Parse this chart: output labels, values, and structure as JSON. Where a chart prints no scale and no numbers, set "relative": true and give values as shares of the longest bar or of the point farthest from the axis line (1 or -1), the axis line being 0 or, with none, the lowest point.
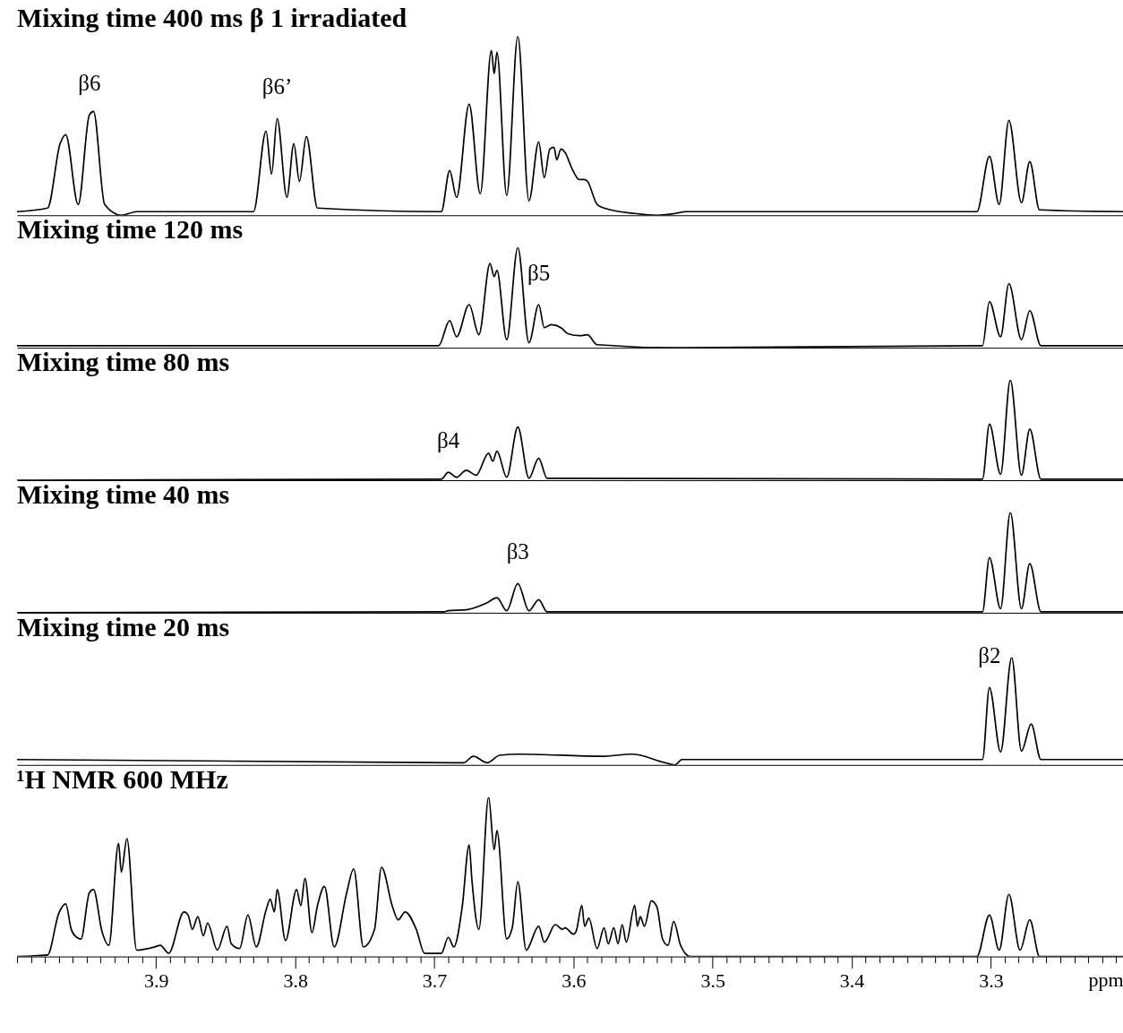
{
  "chart_data": [
    {
      "type": "line",
      "title": "Mixing time 400 ms β 1 irradiated",
      "relative": true,
      "xlim": [
        4.0,
        3.205
      ],
      "tick_labels": false,
      "series": [
        {
          "color": "#000000",
          "x": [
            4.0,
            3.978,
            3.969,
            3.965,
            3.956,
            3.948,
            3.945,
            3.937,
            3.925,
            3.914,
            3.83,
            3.821,
            3.817,
            3.813,
            3.806,
            3.801,
            3.797,
            3.792,
            3.784,
            3.695,
            3.689,
            3.684,
            3.675,
            3.667,
            3.659,
            3.657,
            3.655,
            3.648,
            3.64,
            3.632,
            3.625,
            3.621,
            3.617,
            3.614,
            3.612,
            3.609,
            3.606,
            3.601,
            3.596,
            3.592,
            3.59,
            3.583,
            3.578,
            3.556,
            3.54,
            3.527,
            3.519,
            3.31,
            3.301,
            3.294,
            3.287,
            3.278,
            3.272,
            3.265,
            3.205
          ],
          "values": [
            0.02,
            0.04,
            0.4,
            0.45,
            0.06,
            0.56,
            0.58,
            0.06,
            0,
            0.02,
            0.02,
            0.47,
            0.23,
            0.54,
            0.1,
            0.4,
            0.19,
            0.44,
            0.04,
            0.02,
            0.25,
            0.1,
            0.62,
            0.12,
            0.92,
            0.79,
            0.91,
            0.11,
            1.0,
            0.08,
            0.41,
            0.21,
            0.37,
            0.38,
            0.31,
            0.37,
            0.35,
            0.26,
            0.2,
            0.2,
            0.19,
            0.06,
            0.04,
            0.01,
            0,
            0.01,
            0.02,
            0.02,
            0.33,
            0.06,
            0.53,
            0.07,
            0.3,
            0.03,
            0.02
          ]
        }
      ],
      "annotations": [
        {
          "text": "β6",
          "x": 3.948,
          "y": 0.56
        },
        {
          "text": "β6’",
          "x": 3.813,
          "y": 0.54
        }
      ]
    },
    {
      "type": "line",
      "title": "Mixing time 120 ms",
      "relative": true,
      "xlim": [
        4.0,
        3.205
      ],
      "tick_labels": false,
      "series": [
        {
          "color": "#000000",
          "x": [
            4.0,
            3.697,
            3.689,
            3.684,
            3.675,
            3.668,
            3.66,
            3.657,
            3.655,
            3.648,
            3.64,
            3.632,
            3.625,
            3.621,
            3.616,
            3.609,
            3.604,
            3.595,
            3.59,
            3.583,
            3.527,
            3.306,
            3.301,
            3.293,
            3.287,
            3.278,
            3.272,
            3.264,
            3.205
          ],
          "values": [
            0.02,
            0.02,
            0.27,
            0.11,
            0.43,
            0.13,
            0.84,
            0.71,
            0.77,
            0.08,
            1,
            0.05,
            0.43,
            0.2,
            0.23,
            0.2,
            0.14,
            0.12,
            0.13,
            0.03,
            0,
            0.02,
            0.46,
            0.11,
            0.64,
            0.08,
            0.37,
            0.02,
            0.02
          ]
        }
      ],
      "annotations": [
        {
          "text": "β5",
          "x": 3.625,
          "y": 0.43
        }
      ]
    },
    {
      "type": "line",
      "title": "Mixing time 80 ms",
      "relative": true,
      "xlim": [
        4.0,
        3.205
      ],
      "tick_labels": false,
      "series": [
        {
          "color": "#000000",
          "x": [
            4.0,
            3.695,
            3.69,
            3.684,
            3.677,
            3.67,
            3.661,
            3.658,
            3.655,
            3.648,
            3.64,
            3.632,
            3.625,
            3.619,
            3.306,
            3.301,
            3.293,
            3.286,
            3.278,
            3.272,
            3.264,
            3.205
          ],
          "values": [
            0,
            0.01,
            0.08,
            0.03,
            0.1,
            0.05,
            0.27,
            0.19,
            0.29,
            0.03,
            0.53,
            0.02,
            0.22,
            0.02,
            0.01,
            0.56,
            0.06,
            1,
            0.05,
            0.51,
            0.01,
            0.01
          ]
        }
      ],
      "annotations": [
        {
          "text": "β4",
          "x": 3.69,
          "y": 0.08
        }
      ]
    },
    {
      "type": "line",
      "title": "Mixing time 40 ms",
      "relative": true,
      "xlim": [
        4.0,
        3.205
      ],
      "tick_labels": false,
      "series": [
        {
          "color": "#000000",
          "x": [
            4.0,
            3.693,
            3.69,
            3.677,
            3.662,
            3.655,
            3.648,
            3.64,
            3.632,
            3.625,
            3.619,
            3.306,
            3.301,
            3.293,
            3.286,
            3.278,
            3.272,
            3.264,
            3.205
          ],
          "values": [
            0,
            0.01,
            0.02,
            0.03,
            0.1,
            0.15,
            0.02,
            0.29,
            0.02,
            0.13,
            0.01,
            0.01,
            0.55,
            0.04,
            1,
            0.04,
            0.49,
            0.01,
            0.01
          ]
        }
      ],
      "annotations": [
        {
          "text": "β3",
          "x": 3.64,
          "y": 0.29
        }
      ]
    },
    {
      "type": "line",
      "title": "Mixing time 20 ms",
      "relative": true,
      "xlim": [
        4.0,
        3.205
      ],
      "tick_labels": false,
      "series": [
        {
          "color": "#000000",
          "x": [
            4.0,
            3.679,
            3.672,
            3.662,
            3.653,
            3.639,
            3.58,
            3.558,
            3.534,
            3.527,
            3.522,
            3.306,
            3.301,
            3.293,
            3.285,
            3.278,
            3.271,
            3.264,
            3.205
          ],
          "values": [
            0.05,
            0.02,
            0.08,
            0.02,
            0.09,
            0.1,
            0.08,
            0.1,
            0.02,
            0,
            0.05,
            0.05,
            0.72,
            0.12,
            1,
            0.13,
            0.38,
            0.05,
            0.05
          ]
        }
      ],
      "annotations": [
        {
          "text": "β2",
          "x": 3.301,
          "y": 0.72
        }
      ]
    },
    {
      "type": "line",
      "title": "¹H NMR 600 MHz",
      "relative": true,
      "xlim": [
        4.0,
        3.205
      ],
      "tick_labels": "x",
      "xlabel": "ppm",
      "xticks": [
        {
          "value": 4.0,
          "label": null
        },
        {
          "value": 3.99,
          "label": null
        },
        {
          "value": 3.98,
          "label": null
        },
        {
          "value": 3.97,
          "label": null
        },
        {
          "value": 3.96,
          "label": null
        },
        {
          "value": 3.95,
          "label": null
        },
        {
          "value": 3.94,
          "label": null
        },
        {
          "value": 3.93,
          "label": null
        },
        {
          "value": 3.92,
          "label": null
        },
        {
          "value": 3.91,
          "label": null
        },
        3.9,
        {
          "value": 3.89,
          "label": null
        },
        {
          "value": 3.88,
          "label": null
        },
        {
          "value": 3.87,
          "label": null
        },
        {
          "value": 3.86,
          "label": null
        },
        {
          "value": 3.85,
          "label": null
        },
        {
          "value": 3.84,
          "label": null
        },
        {
          "value": 3.83,
          "label": null
        },
        {
          "value": 3.82,
          "label": null
        },
        {
          "value": 3.81,
          "label": null
        },
        3.8,
        {
          "value": 3.79,
          "label": null
        },
        {
          "value": 3.78,
          "label": null
        },
        {
          "value": 3.77,
          "label": null
        },
        {
          "value": 3.76,
          "label": null
        },
        {
          "value": 3.75,
          "label": null
        },
        {
          "value": 3.74,
          "label": null
        },
        {
          "value": 3.73,
          "label": null
        },
        {
          "value": 3.72,
          "label": null
        },
        {
          "value": 3.71,
          "label": null
        },
        3.7,
        {
          "value": 3.69,
          "label": null
        },
        {
          "value": 3.68,
          "label": null
        },
        {
          "value": 3.67,
          "label": null
        },
        {
          "value": 3.66,
          "label": null
        },
        {
          "value": 3.65,
          "label": null
        },
        {
          "value": 3.64,
          "label": null
        },
        {
          "value": 3.63,
          "label": null
        },
        {
          "value": 3.62,
          "label": null
        },
        {
          "value": 3.61,
          "label": null
        },
        3.6,
        {
          "value": 3.59,
          "label": null
        },
        {
          "value": 3.58,
          "label": null
        },
        {
          "value": 3.57,
          "label": null
        },
        {
          "value": 3.56,
          "label": null
        },
        {
          "value": 3.55,
          "label": null
        },
        {
          "value": 3.54,
          "label": null
        },
        {
          "value": 3.53,
          "label": null
        },
        {
          "value": 3.52,
          "label": null
        },
        {
          "value": 3.51,
          "label": null
        },
        3.5,
        {
          "value": 3.49,
          "label": null
        },
        {
          "value": 3.48,
          "label": null
        },
        {
          "value": 3.47,
          "label": null
        },
        {
          "value": 3.46,
          "label": null
        },
        {
          "value": 3.45,
          "label": null
        },
        {
          "value": 3.44,
          "label": null
        },
        {
          "value": 3.43,
          "label": null
        },
        {
          "value": 3.42,
          "label": null
        },
        {
          "value": 3.41,
          "label": null
        },
        3.4,
        {
          "value": 3.39,
          "label": null
        },
        {
          "value": 3.38,
          "label": null
        },
        {
          "value": 3.37,
          "label": null
        },
        {
          "value": 3.36,
          "label": null
        },
        {
          "value": 3.35,
          "label": null
        },
        {
          "value": 3.34,
          "label": null
        },
        {
          "value": 3.33,
          "label": null
        },
        {
          "value": 3.32,
          "label": null
        },
        {
          "value": 3.31,
          "label": null
        },
        3.3,
        {
          "value": 3.29,
          "label": null
        },
        {
          "value": 3.28,
          "label": null
        },
        {
          "value": 3.27,
          "label": null
        },
        {
          "value": 3.26,
          "label": null
        },
        {
          "value": 3.25,
          "label": null
        },
        {
          "value": 3.24,
          "label": null
        },
        {
          "value": 3.23,
          "label": null
        },
        {
          "value": 3.22,
          "label": null
        },
        {
          "value": 3.21,
          "label": null
        }
      ],
      "series": [
        {
          "color": "#000000",
          "x": [
            4.0,
            3.978,
            3.97,
            3.965,
            3.961,
            3.957,
            3.954,
            3.948,
            3.945,
            3.939,
            3.934,
            3.927,
            3.925,
            3.921,
            3.914,
            3.901,
            3.897,
            3.891,
            3.88,
            3.877,
            3.874,
            3.87,
            3.866,
            3.863,
            3.856,
            3.849,
            3.846,
            3.84,
            3.834,
            3.828,
            3.821,
            3.818,
            3.815,
            3.813,
            3.807,
            3.799,
            3.796,
            3.793,
            3.788,
            3.784,
            3.779,
            3.772,
            3.763,
            3.758,
            3.751,
            3.743,
            3.738,
            3.73,
            3.726,
            3.721,
            3.713,
            3.707,
            3.695,
            3.69,
            3.686,
            3.68,
            3.675,
            3.673,
            3.668,
            3.661,
            3.657,
            3.655,
            3.648,
            3.644,
            3.64,
            3.634,
            3.625,
            3.621,
            3.613,
            3.608,
            3.606,
            3.6,
            3.598,
            3.594,
            3.592,
            3.589,
            3.583,
            3.578,
            3.575,
            3.571,
            3.568,
            3.565,
            3.562,
            3.556,
            3.554,
            3.552,
            3.549,
            3.544,
            3.54,
            3.536,
            3.532,
            3.528,
            3.523,
            3.516,
            3.31,
            3.301,
            3.294,
            3.287,
            3.279,
            3.272,
            3.265,
            3.205
          ],
          "values": [
            0,
            0.01,
            0.27,
            0.33,
            0.17,
            0.12,
            0.11,
            0.4,
            0.42,
            0.16,
            0.07,
            0.71,
            0.53,
            0.74,
            0.04,
            0.06,
            0.07,
            0.02,
            0.28,
            0.26,
            0.17,
            0.25,
            0.13,
            0.21,
            0.04,
            0.19,
            0.08,
            0.05,
            0.26,
            0.06,
            0.29,
            0.36,
            0.28,
            0.42,
            0.1,
            0.42,
            0.32,
            0.49,
            0.15,
            0.32,
            0.44,
            0.06,
            0.4,
            0.55,
            0.06,
            0.17,
            0.56,
            0.31,
            0.23,
            0.28,
            0.17,
            0.02,
            0.02,
            0.12,
            0.06,
            0.31,
            0.7,
            0.48,
            0.17,
            1.0,
            0.67,
            0.79,
            0.11,
            0.18,
            0.47,
            0.04,
            0.19,
            0.09,
            0.2,
            0.17,
            0.18,
            0.14,
            0.16,
            0.32,
            0.19,
            0.24,
            0.05,
            0.18,
            0.08,
            0.18,
            0.08,
            0.2,
            0.09,
            0.32,
            0.19,
            0.25,
            0.19,
            0.35,
            0.31,
            0.11,
            0.07,
            0.22,
            0.07,
            0,
            0,
            0.26,
            0.04,
            0.39,
            0.04,
            0.23,
            0,
            0
          ]
        }
      ]
    }
  ]
}
